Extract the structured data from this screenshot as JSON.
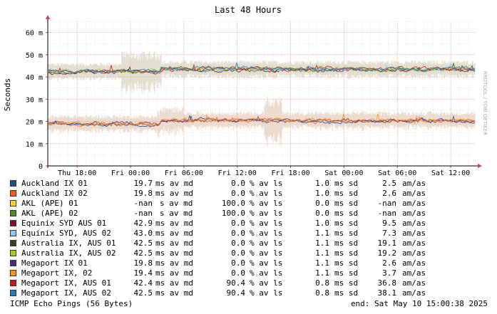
{
  "side_text": "RRDTOOL / TOBI OETIKER",
  "chart_data": {
    "type": "line",
    "title": "Last 48 Hours",
    "ylabel": "Seconds",
    "ylim": [
      0,
      65
    ],
    "yticks": [
      0,
      10,
      20,
      30,
      40,
      50,
      60
    ],
    "ytick_labels": [
      "0",
      "10 m",
      "20 m",
      "30 m",
      "40 m",
      "50 m",
      "60 m"
    ],
    "xticks": [
      "Thu 18:00",
      "Fri 00:00",
      "Fri 06:00",
      "Fri 12:00",
      "Fri 18:00",
      "Sat 00:00",
      "Sat 06:00",
      "Sat 12:00"
    ],
    "xrange_hours": [
      -3.3,
      44.8
    ],
    "grid": true,
    "series_groups": [
      {
        "name": "upper",
        "segments": [
          {
            "from": -3.3,
            "to": 9.3,
            "level": 42.5
          },
          {
            "from": 9.3,
            "to": 44.8,
            "level": 43.5
          }
        ]
      },
      {
        "name": "lower",
        "segments": [
          {
            "from": -3.3,
            "to": 9.3,
            "level": 19.0
          },
          {
            "from": 9.3,
            "to": 44.8,
            "level": 20.5
          }
        ]
      }
    ]
  },
  "legend": {
    "columns": [
      "ms av md",
      "% av ls",
      "ms sd",
      "am/as"
    ],
    "rows": [
      {
        "name": "Auckland IX 01",
        "color": "#1f4e8c",
        "md": "19.7",
        "ls": "0.0",
        "sd": "1.0",
        "am": "2.5"
      },
      {
        "name": "Auckland IX 02",
        "color": "#ff5a14",
        "md": "19.8",
        "ls": "0.0",
        "sd": "1.0",
        "am": "2.6"
      },
      {
        "name": "AKL (APE) 01",
        "color": "#ffd21e",
        "md": "-nan",
        "md_unit": "s av md",
        "ls": "100.0",
        "sd": "0.0",
        "am": "-nan"
      },
      {
        "name": "AKL (APE) 02",
        "color": "#4c8c2b",
        "md": "-nan",
        "md_unit": "s av md",
        "ls": "100.0",
        "sd": "0.0",
        "am": "-nan"
      },
      {
        "name": "Equinix SYD AUS 01",
        "color": "#7a0f2d",
        "md": "42.9",
        "ls": "0.0",
        "sd": "1.0",
        "am": "9.5"
      },
      {
        "name": "Equinix SYD, AUS 02",
        "color": "#8ec8f0",
        "md": "43.0",
        "ls": "0.0",
        "sd": "1.1",
        "am": "7.3"
      },
      {
        "name": "Australia IX, AUS 01",
        "color": "#2e4a14",
        "md": "42.5",
        "ls": "0.0",
        "sd": "1.1",
        "am": "19.1"
      },
      {
        "name": "Australia IX, AUS 02",
        "color": "#a6cc1a",
        "md": "42.5",
        "ls": "0.0",
        "sd": "1.1",
        "am": "19.2"
      },
      {
        "name": "Megaport IX 01",
        "color": "#4b2a7a",
        "md": "19.8",
        "ls": "0.0",
        "sd": "1.1",
        "am": "2.6"
      },
      {
        "name": "Megaport IX, 02",
        "color": "#ff9614",
        "md": "19.4",
        "ls": "0.0",
        "sd": "1.1",
        "am": "3.7"
      },
      {
        "name": "Megaport IX, AUS 01",
        "color": "#d01818",
        "md": "42.4",
        "ls": "90.4",
        "sd": "0.8",
        "am": "36.8"
      },
      {
        "name": "Megaport IX, AUS 02",
        "color": "#1f7ec8",
        "md": "42.5",
        "ls": "90.4",
        "sd": "0.8",
        "am": "38.1"
      }
    ]
  },
  "footer": {
    "left": "ICMP Echo Pings (56 Bytes)",
    "right": "end: Sat May 10 15:00:38 2025"
  }
}
